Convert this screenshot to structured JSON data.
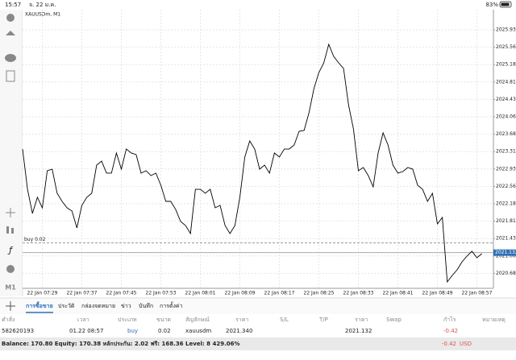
{
  "status_bar": {
    "time": "15:57",
    "date": "จ. 22 ม.ค.",
    "battery": "83%"
  },
  "toolbar": {
    "timeframe": "M1"
  },
  "chart_data": {
    "type": "line",
    "title": "XAUUSDm, M1",
    "categories": [
      null,
      null,
      null,
      null,
      "22 Jan 07:29",
      null,
      null,
      null,
      null,
      null,
      null,
      null,
      "22 Jan 07:37",
      null,
      null,
      null,
      null,
      null,
      null,
      null,
      "22 Jan 07:45",
      null,
      null,
      null,
      null,
      null,
      null,
      null,
      "22 Jan 07:53",
      null,
      null,
      null,
      null,
      null,
      null,
      null,
      "22 Jan 08:01",
      null,
      null,
      null,
      null,
      null,
      null,
      null,
      "22 Jan 08:09",
      null,
      null,
      null,
      null,
      null,
      null,
      null,
      "22 Jan 08:17",
      null,
      null,
      null,
      null,
      null,
      null,
      null,
      "22 Jan 08:25",
      null,
      null,
      null,
      null,
      null,
      null,
      null,
      "22 Jan 08:33",
      null,
      null,
      null,
      null,
      null,
      null,
      null,
      "22 Jan 08:41",
      null,
      null,
      null,
      null,
      null,
      null,
      null,
      "22 Jan 08:49",
      null,
      null,
      null,
      null,
      null,
      null,
      null,
      "22 Jan 08:57",
      null
    ],
    "series": [
      {
        "name": "XAUUSDm",
        "color": "#000000",
        "values": [
          2023.365,
          2022.497,
          2021.977,
          2022.324,
          2022.098,
          2022.897,
          2022.931,
          2022.411,
          2022.237,
          2022.098,
          2022.029,
          2021.664,
          2022.15,
          2022.324,
          2022.411,
          2023.018,
          2023.105,
          2022.845,
          2022.845,
          2023.279,
          2022.931,
          2023.365,
          2023.279,
          2023.244,
          2022.845,
          2022.897,
          2022.793,
          2022.845,
          2022.584,
          2022.237,
          2022.237,
          2022.063,
          2021.803,
          2021.716,
          2021.543,
          2022.497,
          2022.497,
          2022.411,
          2022.497,
          2022.098,
          2022.15,
          2021.716,
          2021.543,
          2021.716,
          2022.324,
          2023.192,
          2023.539,
          2023.365,
          2022.931,
          2023.018,
          2022.845,
          2023.279,
          2023.192,
          2023.365,
          2023.365,
          2023.452,
          2023.747,
          2023.765,
          2024.147,
          2024.667,
          2025.015,
          2025.223,
          2025.622,
          2025.362,
          2025.223,
          2025.101,
          2024.32,
          2023.799,
          2022.897,
          2022.966,
          2022.793,
          2022.549,
          2023.279,
          2023.713,
          2023.452,
          2023.018,
          2022.845,
          2022.879,
          2022.966,
          2022.931,
          2022.584,
          2022.497,
          2022.237,
          2022.411,
          2021.751,
          2021.89,
          2020.501,
          2020.64,
          2020.761,
          2020.935,
          2021.057,
          2021.161,
          2021.022,
          2021.109
        ]
      }
    ],
    "ylim": [
      2020.362,
      2026.369
    ],
    "yticks": [
      2025.935,
      {
        "value": 2025.56,
        "label": "2025.560"
      },
      2025.185,
      {
        "value": 2024.81,
        "label": "2024.810"
      },
      2024.435,
      {
        "value": 2024.06,
        "label": "2024.060"
      },
      2023.685,
      {
        "value": 2023.31,
        "label": "2023.310"
      },
      2022.935,
      {
        "value": 2022.56,
        "label": "2022.560"
      },
      2022.185,
      {
        "value": 2021.81,
        "label": "2021.810"
      },
      2021.435,
      {
        "value": 2021.06,
        "label": "2021.060"
      },
      2020.685
    ],
    "grid": true,
    "position_line": {
      "value": 2021.34,
      "label": "buy 0.02"
    },
    "current_price": 2021.132
  },
  "tabs": [
    "การซื้อขาย",
    "ประวัติ",
    "กล่องจดหมาย",
    "ข่าว",
    "บันทึก",
    "การตั้งค่า"
  ],
  "table": {
    "columns": [
      "คำสั่ง",
      "เวลา",
      "ประเภท",
      "ขนาด",
      "สัญลักษณ์",
      "ราคา",
      "S/L",
      "T/P",
      "ราคา",
      "Swap",
      "กำไร",
      "หมายเหตุ"
    ],
    "row": {
      "order": "582620193",
      "time": "01.22 08:57",
      "kind": "buy",
      "volume": "0.02",
      "symbol": "xauusdm",
      "open_price": "2021.340",
      "price": "2021.132",
      "profit": "-0.42"
    }
  },
  "summary": {
    "text": "Balance: 170.80 Equity: 170.38 หลักประกัน: 2.02 ฟรี: 168.36 Level: 8 429.06%",
    "profit": "-0.42",
    "currency": "USD"
  }
}
